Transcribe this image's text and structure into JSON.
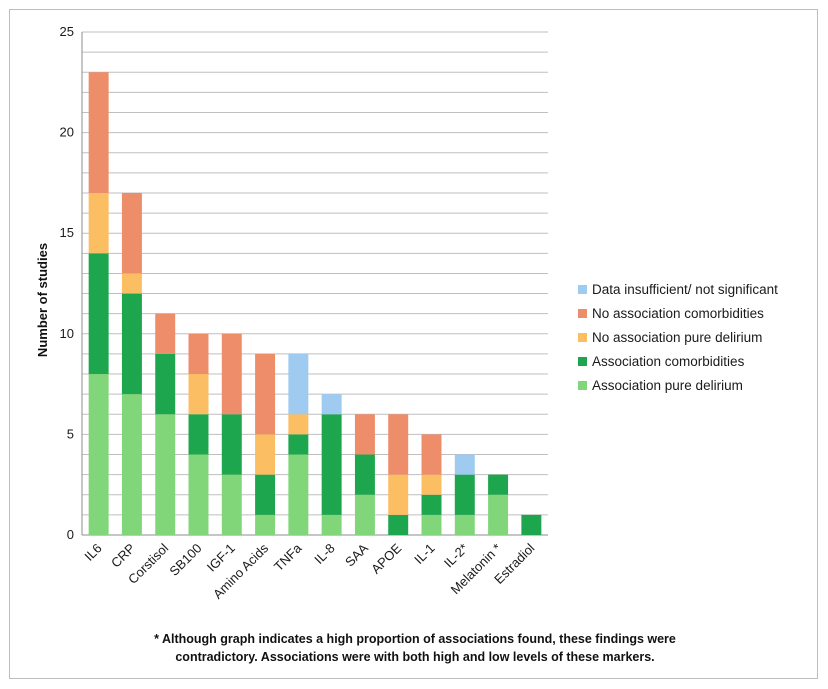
{
  "chart_data": {
    "type": "bar",
    "stacked": true,
    "ylabel": "Number of studies",
    "ylim": [
      0,
      25
    ],
    "yticks": [
      0,
      5,
      10,
      15,
      20,
      25
    ],
    "grid": true,
    "legend_position": "right",
    "categories": [
      "IL6",
      "CRP",
      "Corstisol",
      "SB100",
      "IGF-1",
      "Amino Acids",
      "TNFa",
      "IL-8",
      "SAA",
      "APOE",
      "IL-1",
      "IL-2*",
      "Melatonin *",
      "Estradiol"
    ],
    "series": [
      {
        "name": "Association pure delirium",
        "color": "#82d67a",
        "values": [
          8,
          7,
          6,
          4,
          3,
          1,
          4,
          1,
          2,
          0,
          1,
          1,
          2,
          0
        ]
      },
      {
        "name": "Association comorbidities",
        "color": "#1ea64e",
        "values": [
          6,
          5,
          3,
          2,
          3,
          2,
          1,
          5,
          2,
          1,
          1,
          2,
          1,
          1
        ]
      },
      {
        "name": "No association pure delirium",
        "color": "#fbbe63",
        "values": [
          3,
          1,
          0,
          2,
          0,
          2,
          1,
          0,
          0,
          2,
          1,
          0,
          0,
          0
        ]
      },
      {
        "name": "No association comorbidities",
        "color": "#ee8d6a",
        "values": [
          6,
          4,
          2,
          2,
          4,
          4,
          0,
          0,
          2,
          3,
          2,
          0,
          0,
          0
        ]
      },
      {
        "name": "Data insufficient/ not significant",
        "color": "#9fcbf1",
        "values": [
          0,
          0,
          0,
          0,
          0,
          0,
          3,
          1,
          0,
          0,
          0,
          1,
          0,
          0
        ]
      }
    ],
    "legend_order": [
      4,
      3,
      2,
      1,
      0
    ]
  },
  "footnote": {
    "line1": "* Although graph indicates a high proportion of associations found, these findings were",
    "line2": "contradictory. Associations were with both high and low levels of these markers."
  }
}
